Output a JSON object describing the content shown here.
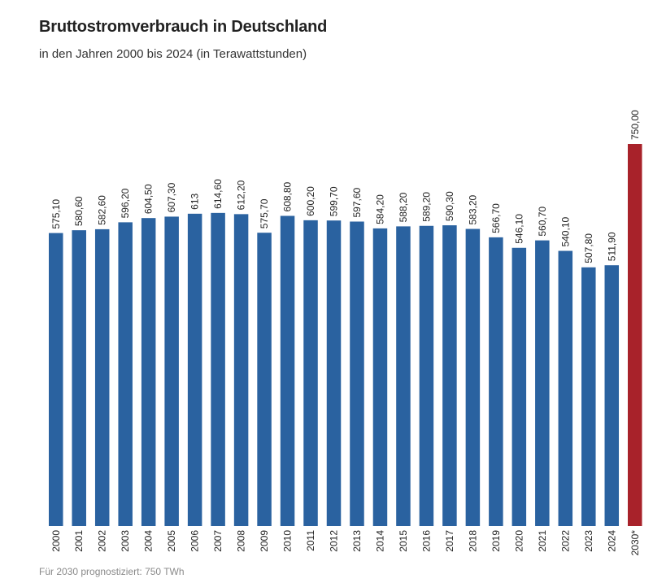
{
  "header": {
    "title": "Bruttostromverbrauch in Deutschland",
    "subtitle": "in den Jahren 2000 bis 2024 (in Terawattstunden)"
  },
  "footnote": "Für 2030 prognostiziert: 750 TWh",
  "colors": {
    "bar": "#2a62a0",
    "forecast": "#a8222a"
  },
  "chart_data": {
    "type": "bar",
    "categories": [
      "2000",
      "2001",
      "2002",
      "2003",
      "2004",
      "2005",
      "2006",
      "2007",
      "2008",
      "2009",
      "2010",
      "2011",
      "2012",
      "2013",
      "2014",
      "2015",
      "2016",
      "2017",
      "2018",
      "2019",
      "2020",
      "2021",
      "2022",
      "2023",
      "2024",
      "2030*"
    ],
    "values": [
      575.1,
      580.6,
      582.6,
      596.2,
      604.5,
      607.3,
      613,
      614.6,
      612.2,
      575.7,
      608.8,
      600.2,
      599.7,
      597.6,
      584.2,
      588.2,
      589.2,
      590.3,
      583.2,
      566.7,
      546.1,
      560.7,
      540.1,
      507.8,
      511.9,
      750.0
    ],
    "value_labels": [
      "575,10",
      "580,60",
      "582,60",
      "596,20",
      "604,50",
      "607,30",
      "613",
      "614,60",
      "612,20",
      "575,70",
      "608,80",
      "600,20",
      "599,70",
      "597,60",
      "584,20",
      "588,20",
      "589,20",
      "590,30",
      "583,20",
      "566,70",
      "546,10",
      "560,70",
      "540,10",
      "507,80",
      "511,90",
      "750,00"
    ],
    "highlight": [
      "2030*"
    ],
    "ylim": [
      0,
      750
    ],
    "grid": false,
    "legend": "none"
  }
}
